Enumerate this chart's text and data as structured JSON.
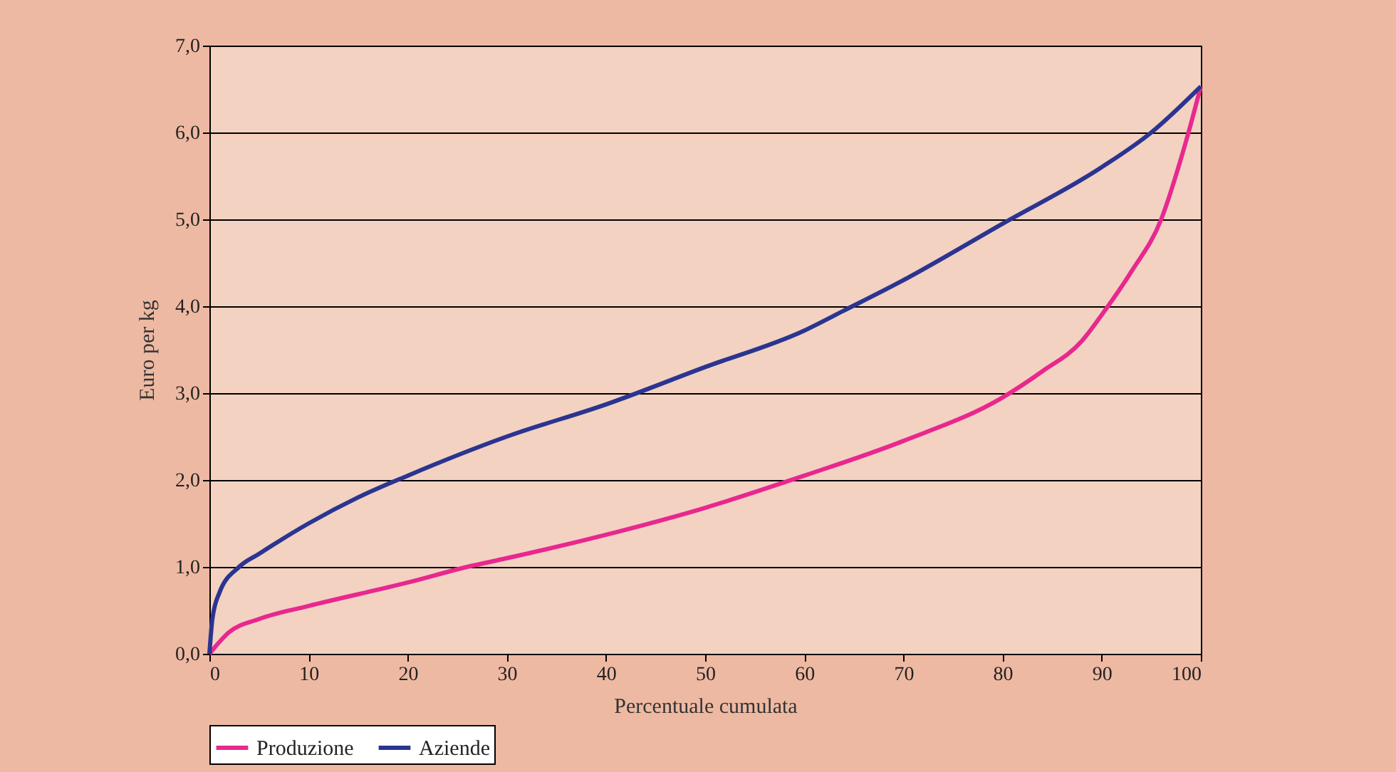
{
  "chart_data": {
    "type": "line",
    "xlabel": "Percentuale cumulata",
    "ylabel": "Euro per kg",
    "xlim": [
      0,
      100
    ],
    "xticks": [
      0,
      10,
      20,
      30,
      40,
      50,
      60,
      70,
      80,
      90,
      100
    ],
    "ylim": [
      0,
      7
    ],
    "yticks": [
      {
        "value": 0,
        "label": "0,0"
      },
      {
        "value": 1,
        "label": "1,0"
      },
      {
        "value": 2,
        "label": "2,0"
      },
      {
        "value": 3,
        "label": "3,0"
      },
      {
        "value": 4,
        "label": "4,0"
      },
      {
        "value": 5,
        "label": "5,0"
      },
      {
        "value": 6,
        "label": "6,0"
      },
      {
        "value": 7,
        "label": "7,0"
      }
    ],
    "grid": "y",
    "legend": "bottom",
    "marker": "none",
    "line_style": "solid",
    "series": [
      {
        "name": "Produzione",
        "color": "#e8288e",
        "x": [
          0,
          2,
          5,
          10,
          20,
          26,
          30,
          40,
          50,
          60,
          70,
          80,
          84,
          88,
          90,
          93,
          96,
          98,
          99,
          100
        ],
        "values": [
          0,
          0.25,
          0.4,
          0.55,
          0.82,
          1.0,
          1.1,
          1.37,
          1.68,
          2.05,
          2.45,
          2.95,
          3.25,
          3.6,
          3.9,
          4.4,
          5.0,
          5.7,
          6.1,
          6.53
        ]
      },
      {
        "name": "Aziende",
        "color": "#2b3590",
        "x": [
          0,
          0.3,
          1,
          3,
          5,
          10,
          15,
          20,
          30,
          40,
          50,
          60,
          64,
          70,
          80,
          90,
          95,
          100
        ],
        "values": [
          0,
          0.4,
          0.7,
          1.0,
          1.15,
          1.5,
          1.8,
          2.05,
          2.5,
          2.87,
          3.3,
          3.72,
          3.95,
          4.3,
          4.95,
          5.6,
          6.0,
          6.53
        ]
      }
    ]
  }
}
